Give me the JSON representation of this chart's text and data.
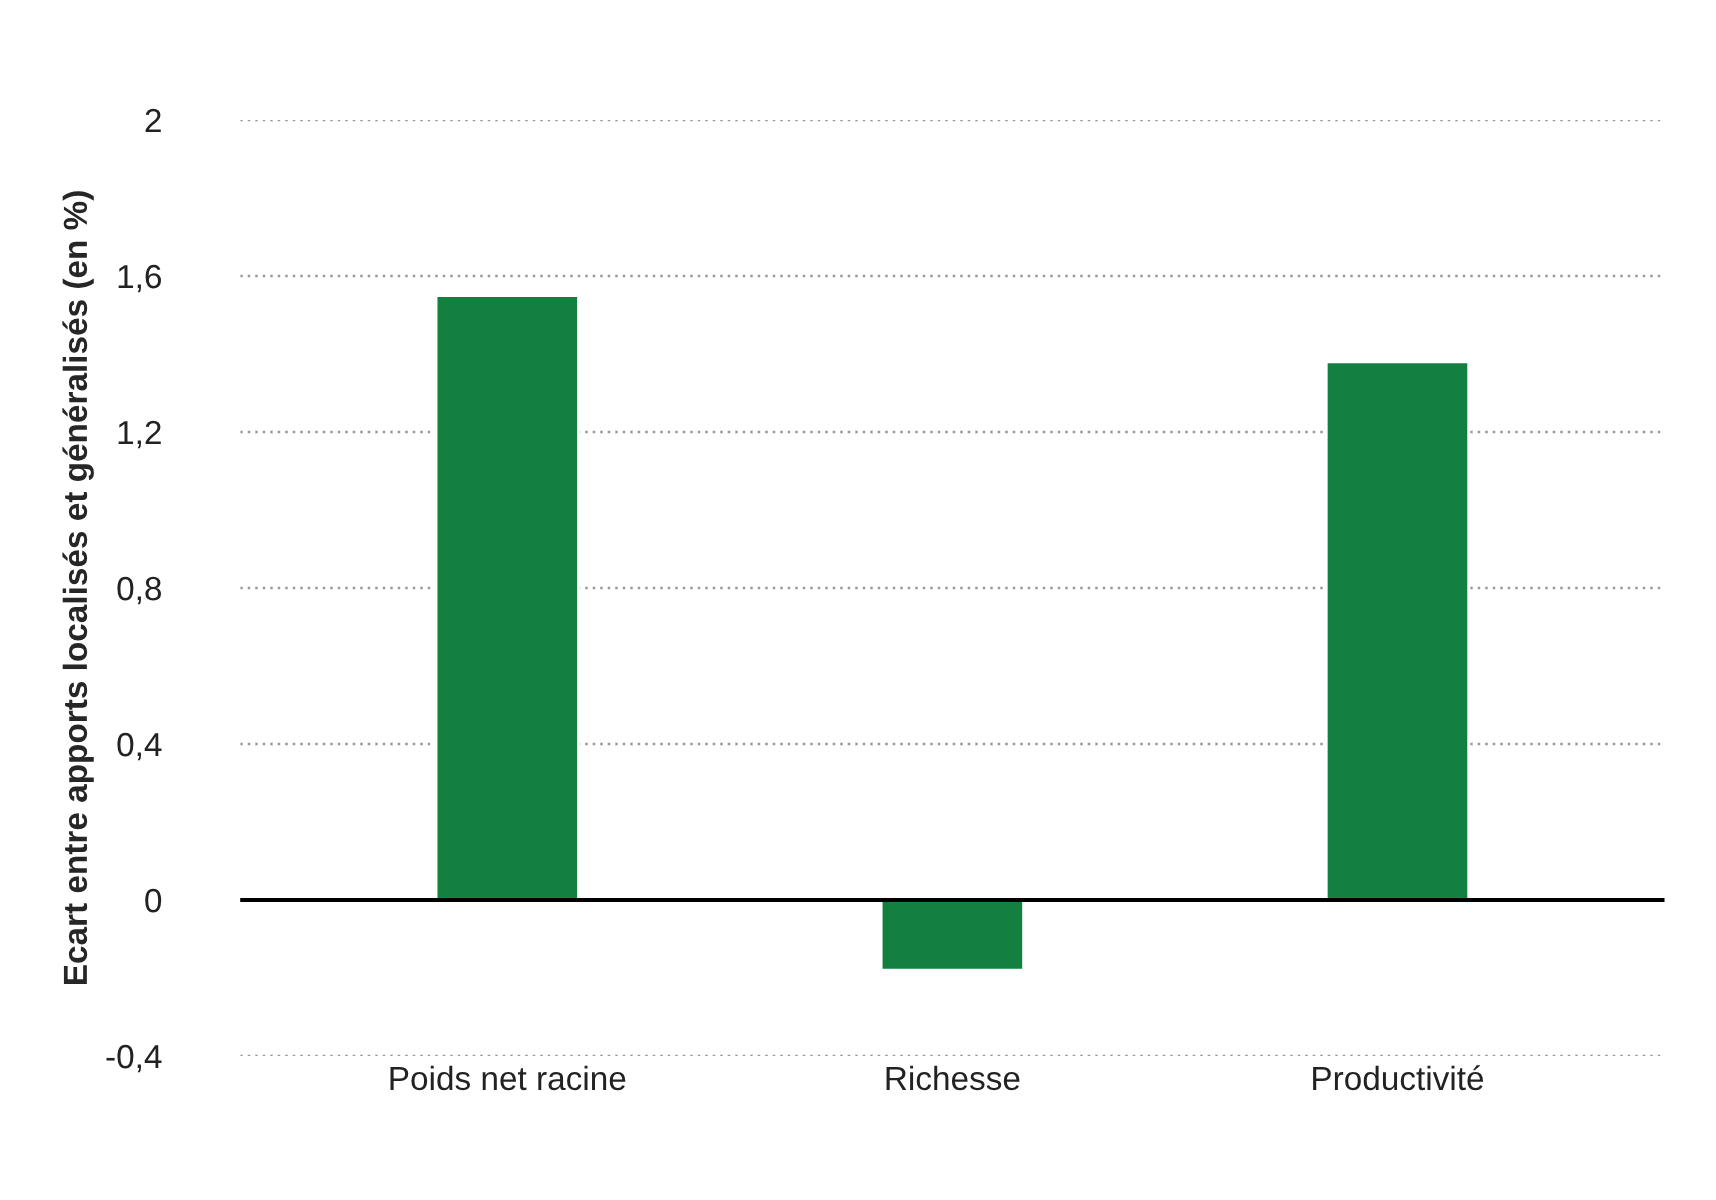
{
  "chart_data": {
    "type": "bar",
    "ylabel": "Ecart entre apports localisés et généralisés (en %)",
    "categories": [
      "Poids net racine",
      "Richesse",
      "Productivité"
    ],
    "values": [
      1.55,
      -0.18,
      1.38
    ],
    "color": "#13803f",
    "ylim": [
      -0.4,
      2
    ],
    "yticks": [
      {
        "value": -0.4,
        "label": "-0,4"
      },
      0,
      {
        "value": 0.4,
        "label": "0,4"
      },
      {
        "value": 0.8,
        "label": "0,8"
      },
      {
        "value": 1.2,
        "label": "1,2"
      },
      {
        "value": 1.6,
        "label": "1,6"
      },
      2
    ],
    "ref_lines": [
      {
        "axis": "y",
        "value": 0,
        "color": "#000000",
        "line_style": "solid"
      }
    ],
    "grid": "y",
    "legend": false
  }
}
